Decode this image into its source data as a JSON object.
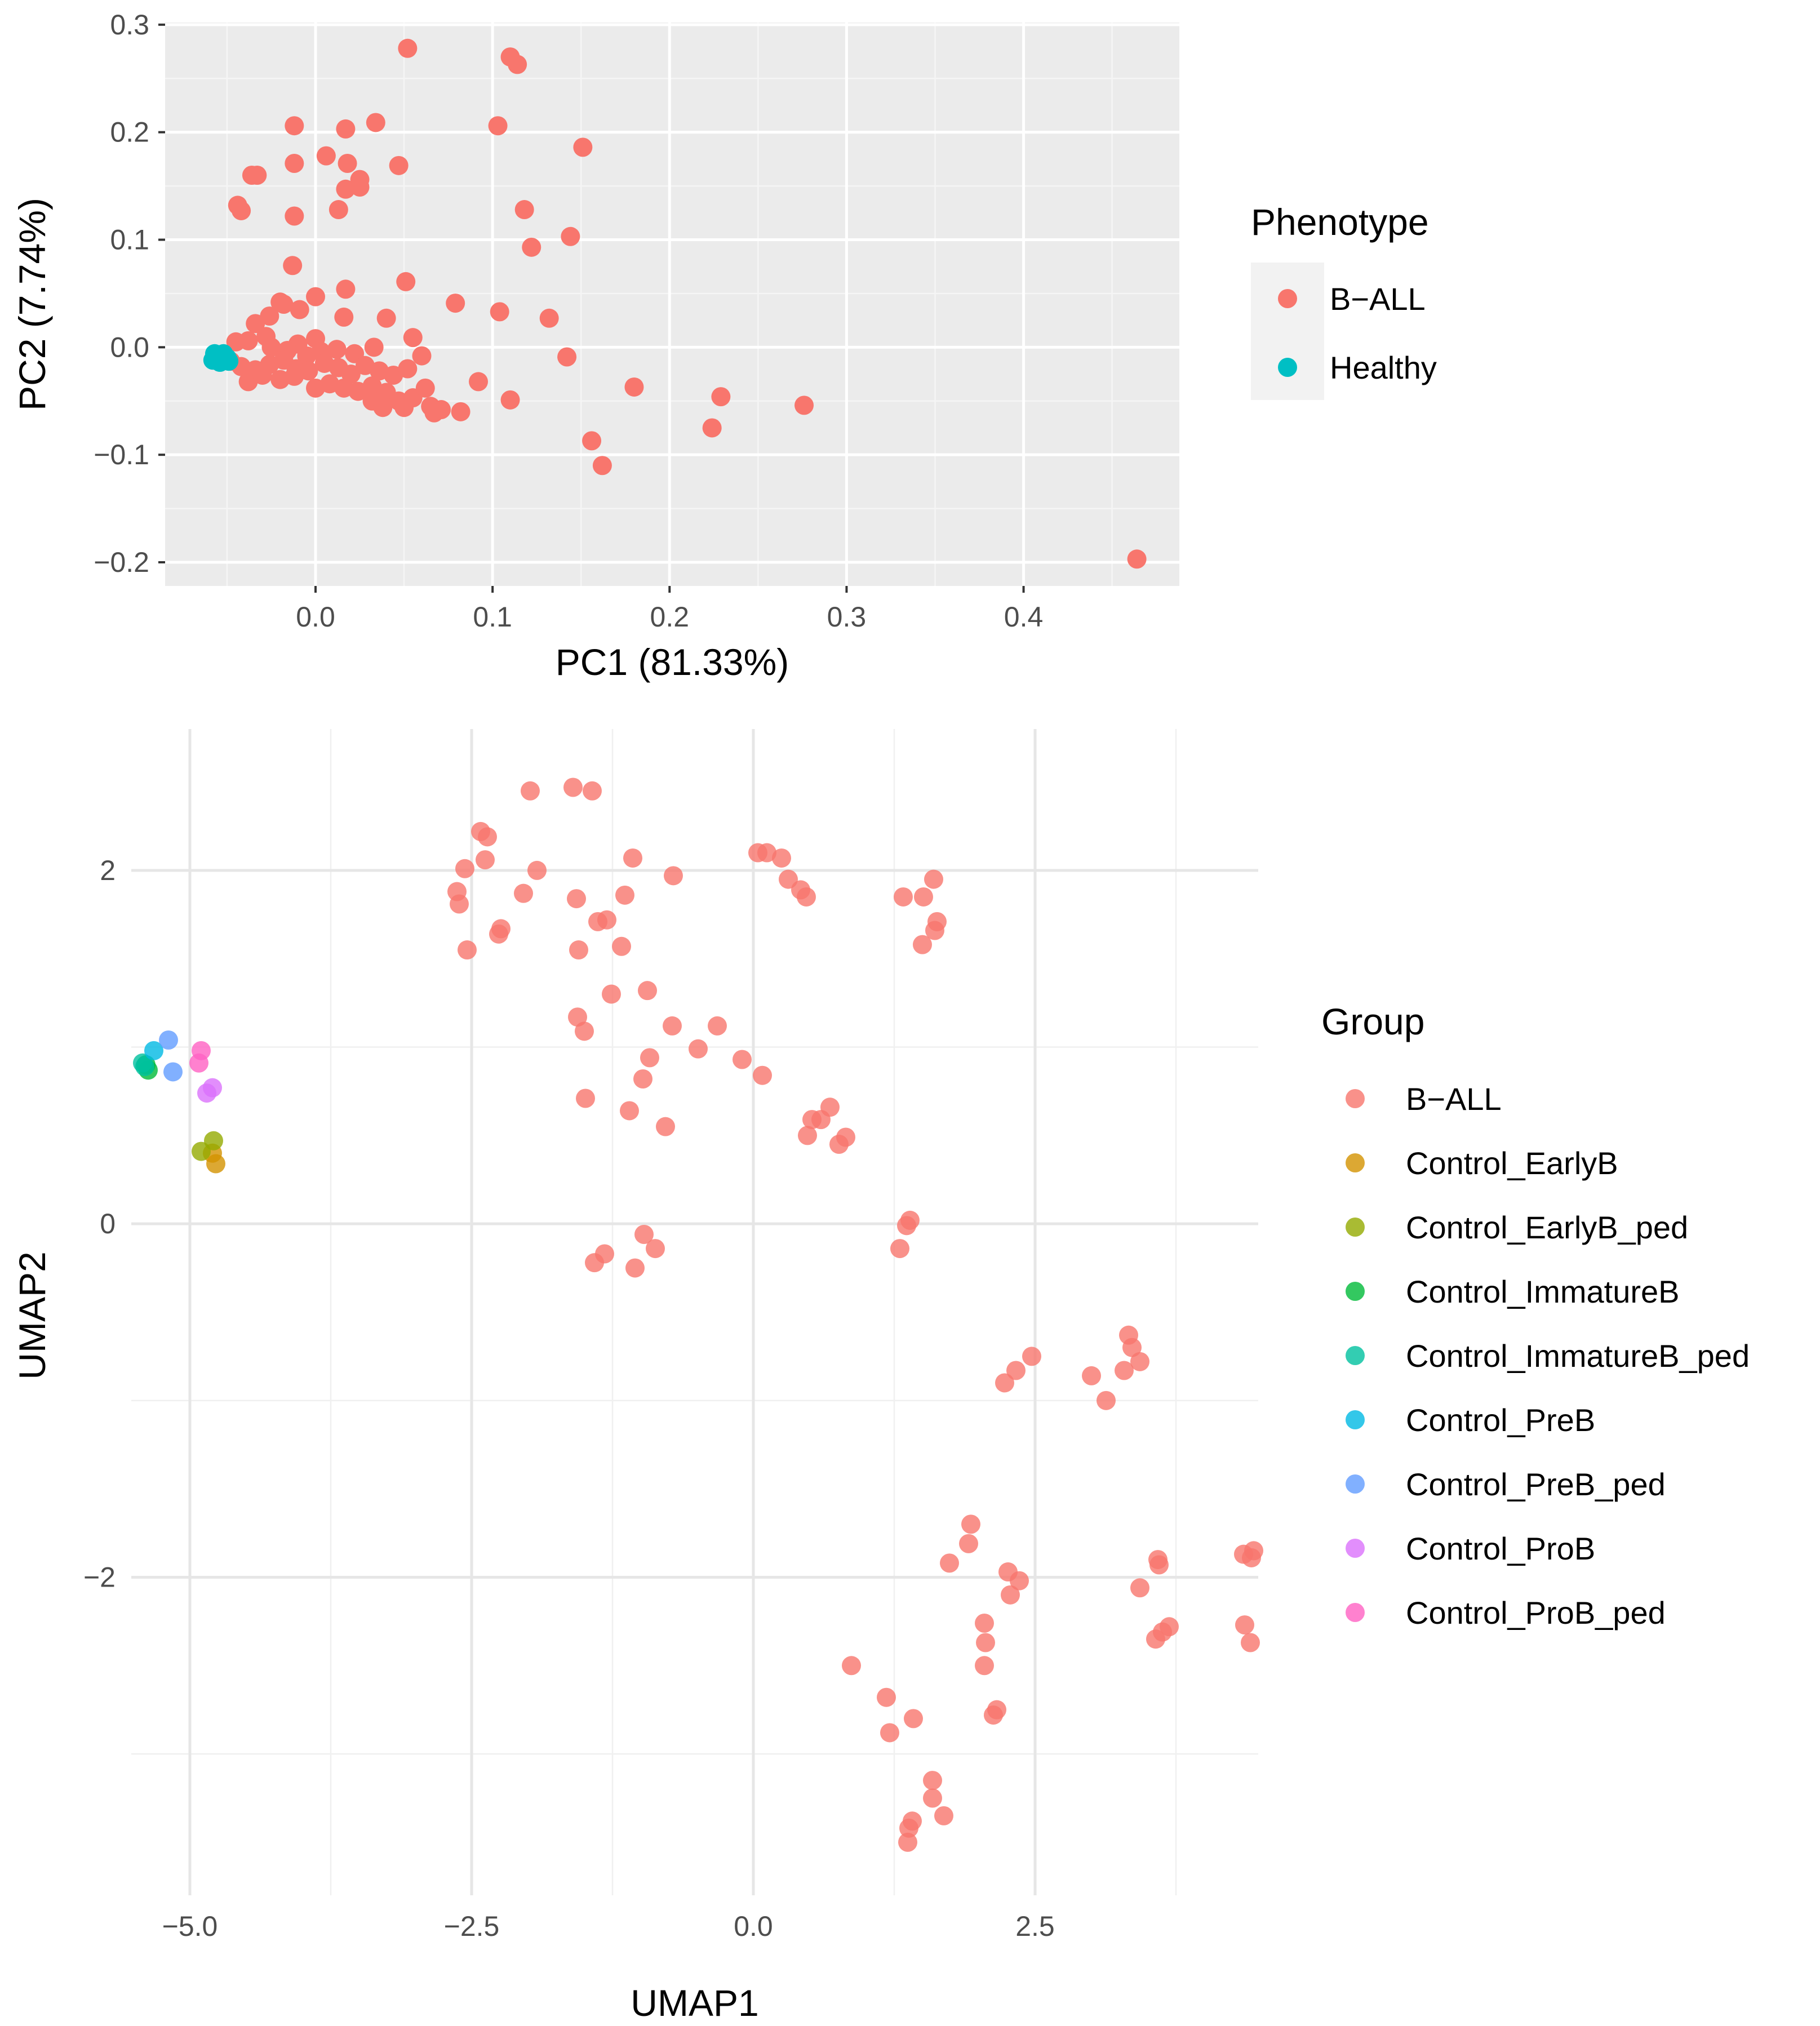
{
  "chart_data": [
    {
      "type": "scatter",
      "title": "",
      "xlabel": "PC1 (81.33%)",
      "ylabel": "PC2 (7.74%)",
      "xlim": [
        -0.085,
        0.488
      ],
      "ylim": [
        -0.222,
        0.302
      ],
      "xticks": [
        0.0,
        0.1,
        0.2,
        0.3,
        0.4
      ],
      "xtick_labels": [
        "0.0",
        "0.1",
        "0.2",
        "0.3",
        "0.4"
      ],
      "yticks": [
        -0.2,
        -0.1,
        0.0,
        0.1,
        0.2,
        0.3
      ],
      "ytick_labels": [
        "−0.2",
        "−0.1",
        "0.0",
        "0.1",
        "0.2",
        "0.3"
      ],
      "grid": true,
      "legend": {
        "title": "Phenotype",
        "position": "right",
        "entries": [
          "B−ALL",
          "Healthy"
        ]
      },
      "series": [
        {
          "name": "B−ALL",
          "color": "#F8766D",
          "points": [
            [
              0.052,
              0.278
            ],
            [
              0.11,
              0.27
            ],
            [
              0.114,
              0.263
            ],
            [
              -0.012,
              0.206
            ],
            [
              0.017,
              0.203
            ],
            [
              0.034,
              0.209
            ],
            [
              0.103,
              0.206
            ],
            [
              0.151,
              0.186
            ],
            [
              0.006,
              0.178
            ],
            [
              -0.012,
              0.171
            ],
            [
              0.018,
              0.171
            ],
            [
              0.047,
              0.169
            ],
            [
              -0.036,
              0.16
            ],
            [
              -0.033,
              0.16
            ],
            [
              0.025,
              0.156
            ],
            [
              0.017,
              0.147
            ],
            [
              0.025,
              0.149
            ],
            [
              -0.044,
              0.132
            ],
            [
              -0.042,
              0.127
            ],
            [
              -0.012,
              0.122
            ],
            [
              0.013,
              0.128
            ],
            [
              0.118,
              0.128
            ],
            [
              0.144,
              0.103
            ],
            [
              0.122,
              0.093
            ],
            [
              -0.013,
              0.076
            ],
            [
              0.051,
              0.061
            ],
            [
              0.017,
              0.054
            ],
            [
              -0.02,
              0.042
            ],
            [
              -0.018,
              0.04
            ],
            [
              0.0,
              0.047
            ],
            [
              -0.009,
              0.035
            ],
            [
              -0.026,
              0.029
            ],
            [
              0.079,
              0.041
            ],
            [
              0.104,
              0.033
            ],
            [
              0.132,
              0.027
            ],
            [
              0.016,
              0.028
            ],
            [
              0.04,
              0.027
            ],
            [
              -0.034,
              0.022
            ],
            [
              -0.028,
              0.01
            ],
            [
              -0.01,
              0.003
            ],
            [
              0.0,
              0.008
            ],
            [
              0.055,
              0.009
            ],
            [
              -0.045,
              0.005
            ],
            [
              -0.038,
              0.006
            ],
            [
              -0.025,
              0.0
            ],
            [
              -0.016,
              -0.003
            ],
            [
              -0.005,
              -0.008
            ],
            [
              0.003,
              -0.004
            ],
            [
              0.012,
              -0.002
            ],
            [
              0.022,
              -0.006
            ],
            [
              0.033,
              0.0
            ],
            [
              0.06,
              -0.008
            ],
            [
              0.142,
              -0.009
            ],
            [
              -0.048,
              -0.013
            ],
            [
              -0.042,
              -0.018
            ],
            [
              -0.034,
              -0.021
            ],
            [
              -0.026,
              -0.016
            ],
            [
              -0.018,
              -0.012
            ],
            [
              -0.011,
              -0.02
            ],
            [
              -0.004,
              -0.022
            ],
            [
              0.005,
              -0.015
            ],
            [
              0.013,
              -0.019
            ],
            [
              0.02,
              -0.025
            ],
            [
              0.028,
              -0.017
            ],
            [
              0.036,
              -0.022
            ],
            [
              0.044,
              -0.026
            ],
            [
              0.052,
              -0.02
            ],
            [
              -0.038,
              -0.032
            ],
            [
              -0.03,
              -0.026
            ],
            [
              -0.02,
              -0.03
            ],
            [
              -0.012,
              -0.027
            ],
            [
              0.0,
              -0.038
            ],
            [
              0.008,
              -0.034
            ],
            [
              0.016,
              -0.038
            ],
            [
              0.024,
              -0.041
            ],
            [
              0.032,
              -0.036
            ],
            [
              0.04,
              -0.042
            ],
            [
              0.047,
              -0.05
            ],
            [
              0.055,
              -0.047
            ],
            [
              0.062,
              -0.038
            ],
            [
              0.032,
              -0.05
            ],
            [
              0.038,
              -0.056
            ],
            [
              0.05,
              -0.056
            ],
            [
              0.065,
              -0.055
            ],
            [
              0.067,
              -0.061
            ],
            [
              0.071,
              -0.058
            ],
            [
              0.082,
              -0.06
            ],
            [
              0.092,
              -0.032
            ],
            [
              0.11,
              -0.049
            ],
            [
              0.18,
              -0.037
            ],
            [
              0.229,
              -0.046
            ],
            [
              0.224,
              -0.075
            ],
            [
              0.276,
              -0.054
            ],
            [
              0.156,
              -0.087
            ],
            [
              0.162,
              -0.11
            ],
            [
              0.464,
              -0.197
            ]
          ]
        },
        {
          "name": "Healthy",
          "color": "#00BFC4",
          "points": [
            [
              -0.058,
              -0.012
            ],
            [
              -0.057,
              -0.006
            ],
            [
              -0.055,
              -0.01
            ],
            [
              -0.053,
              -0.008
            ],
            [
              -0.051,
              -0.011
            ],
            [
              -0.054,
              -0.014
            ],
            [
              -0.056,
              -0.009
            ],
            [
              -0.052,
              -0.006
            ],
            [
              -0.05,
              -0.01
            ],
            [
              -0.049,
              -0.013
            ]
          ]
        }
      ]
    },
    {
      "type": "scatter",
      "title": "",
      "xlabel": "UMAP1",
      "ylabel": "UMAP2",
      "xlim": [
        -5.52,
        4.48
      ],
      "ylim": [
        -3.8,
        2.8
      ],
      "xticks": [
        -5.0,
        -2.5,
        0.0,
        2.5
      ],
      "xtick_labels": [
        "−5.0",
        "−2.5",
        "0.0",
        "2.5"
      ],
      "yticks": [
        -2,
        0,
        2
      ],
      "ytick_labels": [
        "−2",
        "0",
        "2"
      ],
      "grid": true,
      "legend": {
        "title": "Group",
        "position": "right",
        "entries": [
          "B−ALL",
          "Control_EarlyB",
          "Control_EarlyB_ped",
          "Control_ImmatureB",
          "Control_ImmatureB_ped",
          "Control_PreB",
          "Control_PreB_ped",
          "Control_ProB",
          "Control_ProB_ped"
        ]
      },
      "series": [
        {
          "name": "B−ALL",
          "color": "#F8766D",
          "points": [
            [
              -1.6,
              2.47
            ],
            [
              -1.98,
              2.45
            ],
            [
              -1.43,
              2.45
            ],
            [
              -2.42,
              2.22
            ],
            [
              -2.36,
              2.19
            ],
            [
              -2.56,
              2.01
            ],
            [
              -2.38,
              2.06
            ],
            [
              -1.92,
              2.0
            ],
            [
              -1.07,
              2.07
            ],
            [
              -0.71,
              1.97
            ],
            [
              0.04,
              2.1
            ],
            [
              0.12,
              2.1
            ],
            [
              0.25,
              2.07
            ],
            [
              0.31,
              1.95
            ],
            [
              0.42,
              1.89
            ],
            [
              0.47,
              1.85
            ],
            [
              1.6,
              1.95
            ],
            [
              1.33,
              1.85
            ],
            [
              1.51,
              1.85
            ],
            [
              -2.63,
              1.88
            ],
            [
              -2.61,
              1.81
            ],
            [
              -2.04,
              1.87
            ],
            [
              -1.57,
              1.84
            ],
            [
              -1.14,
              1.86
            ],
            [
              1.63,
              1.71
            ],
            [
              1.61,
              1.66
            ],
            [
              1.5,
              1.58
            ],
            [
              -2.24,
              1.67
            ],
            [
              -2.26,
              1.64
            ],
            [
              -2.54,
              1.55
            ],
            [
              -1.38,
              1.71
            ],
            [
              -1.3,
              1.72
            ],
            [
              -1.55,
              1.55
            ],
            [
              -1.17,
              1.57
            ],
            [
              -0.94,
              1.32
            ],
            [
              -1.26,
              1.3
            ],
            [
              -1.56,
              1.17
            ],
            [
              -1.5,
              1.09
            ],
            [
              -0.72,
              1.12
            ],
            [
              -0.32,
              1.12
            ],
            [
              -0.49,
              0.99
            ],
            [
              -0.1,
              0.93
            ],
            [
              0.08,
              0.84
            ],
            [
              -0.92,
              0.94
            ],
            [
              -0.98,
              0.82
            ],
            [
              -1.49,
              0.71
            ],
            [
              -1.1,
              0.64
            ],
            [
              -0.78,
              0.55
            ],
            [
              0.52,
              0.59
            ],
            [
              0.6,
              0.59
            ],
            [
              0.68,
              0.66
            ],
            [
              0.48,
              0.5
            ],
            [
              0.82,
              0.49
            ],
            [
              0.76,
              0.45
            ],
            [
              1.39,
              0.02
            ],
            [
              1.36,
              -0.01
            ],
            [
              1.3,
              -0.14
            ],
            [
              -0.97,
              -0.06
            ],
            [
              -0.87,
              -0.14
            ],
            [
              -1.32,
              -0.17
            ],
            [
              -1.41,
              -0.22
            ],
            [
              -1.05,
              -0.25
            ],
            [
              2.47,
              -0.75
            ],
            [
              2.33,
              -0.83
            ],
            [
              2.23,
              -0.9
            ],
            [
              3.33,
              -0.63
            ],
            [
              3.36,
              -0.7
            ],
            [
              3.43,
              -0.78
            ],
            [
              3.29,
              -0.83
            ],
            [
              3.0,
              -0.86
            ],
            [
              3.13,
              -1.0
            ],
            [
              1.93,
              -1.7
            ],
            [
              1.91,
              -1.81
            ],
            [
              1.74,
              -1.92
            ],
            [
              2.26,
              -1.97
            ],
            [
              2.36,
              -2.02
            ],
            [
              2.28,
              -2.1
            ],
            [
              3.59,
              -1.9
            ],
            [
              3.6,
              -1.93
            ],
            [
              3.43,
              -2.06
            ],
            [
              4.35,
              -1.87
            ],
            [
              4.42,
              -1.89
            ],
            [
              4.44,
              -1.85
            ],
            [
              2.05,
              -2.26
            ],
            [
              2.06,
              -2.37
            ],
            [
              2.05,
              -2.5
            ],
            [
              3.69,
              -2.28
            ],
            [
              3.63,
              -2.31
            ],
            [
              3.57,
              -2.35
            ],
            [
              4.36,
              -2.27
            ],
            [
              4.41,
              -2.37
            ],
            [
              0.87,
              -2.5
            ],
            [
              1.18,
              -2.68
            ],
            [
              1.42,
              -2.8
            ],
            [
              1.21,
              -2.88
            ],
            [
              2.16,
              -2.75
            ],
            [
              2.13,
              -2.78
            ],
            [
              1.59,
              -3.15
            ],
            [
              1.59,
              -3.25
            ],
            [
              1.41,
              -3.38
            ],
            [
              1.38,
              -3.42
            ],
            [
              1.69,
              -3.35
            ],
            [
              1.37,
              -3.5
            ]
          ]
        },
        {
          "name": "Control_EarlyB",
          "color": "#D39200",
          "points": [
            [
              -4.77,
              0.34
            ],
            [
              -4.8,
              0.4
            ]
          ]
        },
        {
          "name": "Control_EarlyB_ped",
          "color": "#93AA00",
          "points": [
            [
              -4.9,
              0.41
            ],
            [
              -4.79,
              0.47
            ]
          ]
        },
        {
          "name": "Control_ImmatureB",
          "color": "#00BA38",
          "points": [
            [
              -5.37,
              0.87
            ],
            [
              -5.39,
              0.9
            ]
          ]
        },
        {
          "name": "Control_ImmatureB_ped",
          "color": "#00C19F",
          "points": [
            [
              -5.42,
              0.91
            ],
            [
              -5.4,
              0.89
            ]
          ]
        },
        {
          "name": "Control_PreB",
          "color": "#00B9E3",
          "points": [
            [
              -5.32,
              0.98
            ]
          ]
        },
        {
          "name": "Control_PreB_ped",
          "color": "#619CFF",
          "points": [
            [
              -5.19,
              1.04
            ],
            [
              -5.15,
              0.86
            ]
          ]
        },
        {
          "name": "Control_ProB",
          "color": "#DB72FB",
          "points": [
            [
              -4.8,
              0.77
            ],
            [
              -4.85,
              0.74
            ]
          ]
        },
        {
          "name": "Control_ProB_ped",
          "color": "#FF61C3",
          "points": [
            [
              -4.9,
              0.98
            ],
            [
              -4.92,
              0.91
            ]
          ]
        }
      ]
    }
  ]
}
